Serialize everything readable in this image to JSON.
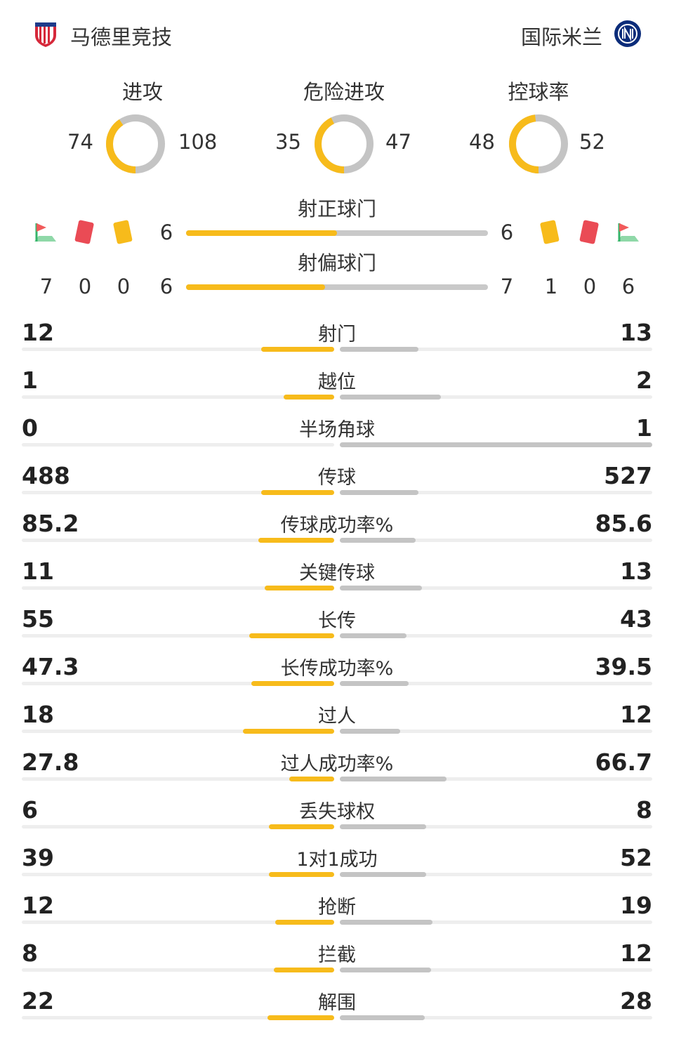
{
  "home": {
    "name": "马德里竞技"
  },
  "away": {
    "name": "国际米兰"
  },
  "colors": {
    "home": "#f7bb1b",
    "away": "#c4c4c4"
  },
  "donuts": [
    {
      "label": "进攻",
      "home": "74",
      "away": "108"
    },
    {
      "label": "危险进攻",
      "home": "35",
      "away": "47"
    },
    {
      "label": "控球率",
      "home": "48",
      "away": "52"
    }
  ],
  "shots_on": {
    "label": "射正球门",
    "home": "6",
    "away": "6"
  },
  "shots_off": {
    "label": "射偏球门",
    "home": "6",
    "away": "7"
  },
  "home_cards": {
    "corners": "7",
    "red": "0",
    "yellow": "0"
  },
  "away_cards": {
    "yellow": "1",
    "red": "0",
    "corners": "6"
  },
  "stats": [
    {
      "label": "射门",
      "home": "12",
      "away": "13"
    },
    {
      "label": "越位",
      "home": "1",
      "away": "2"
    },
    {
      "label": "半场角球",
      "home": "0",
      "away": "1"
    },
    {
      "label": "传球",
      "home": "488",
      "away": "527"
    },
    {
      "label": "传球成功率%",
      "home": "85.2",
      "away": "85.6"
    },
    {
      "label": "关键传球",
      "home": "11",
      "away": "13"
    },
    {
      "label": "长传",
      "home": "55",
      "away": "43"
    },
    {
      "label": "长传成功率%",
      "home": "47.3",
      "away": "39.5"
    },
    {
      "label": "过人",
      "home": "18",
      "away": "12"
    },
    {
      "label": "过人成功率%",
      "home": "27.8",
      "away": "66.7"
    },
    {
      "label": "丢失球权",
      "home": "6",
      "away": "8"
    },
    {
      "label": "1对1成功",
      "home": "39",
      "away": "52"
    },
    {
      "label": "抢断",
      "home": "12",
      "away": "19"
    },
    {
      "label": "拦截",
      "home": "8",
      "away": "12"
    },
    {
      "label": "解围",
      "home": "22",
      "away": "28"
    }
  ]
}
